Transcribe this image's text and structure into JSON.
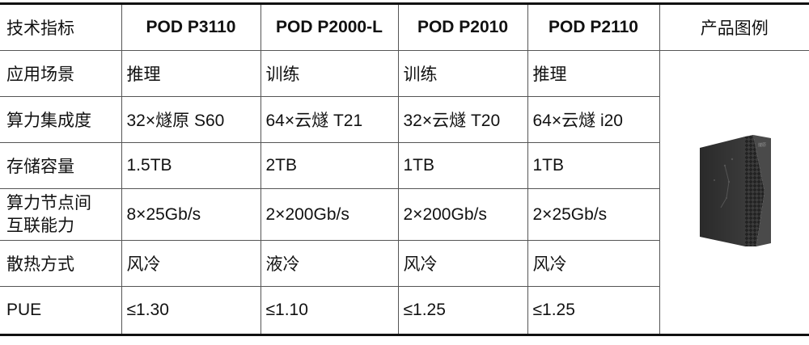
{
  "headers": [
    "技术指标",
    "POD P3110",
    "POD P2000-L",
    "POD P2010",
    "POD P2110",
    "产品图例"
  ],
  "rows": [
    {
      "label": "应用场景",
      "values": [
        "推理",
        "训练",
        "训练",
        "推理"
      ]
    },
    {
      "label": "算力集成度",
      "values": [
        "32×燧原 S60",
        "64×云燧 T21",
        "32×云燧 T20",
        "64×云燧 i20"
      ]
    },
    {
      "label": "存储容量",
      "values": [
        "1.5TB",
        "2TB",
        "1TB",
        "1TB"
      ]
    },
    {
      "label": "算力节点间互联能力",
      "values": [
        "8×25Gb/s",
        "2×200Gb/s",
        "2×200Gb/s",
        "2×25Gb/s"
      ]
    },
    {
      "label": "散热方式",
      "values": [
        "风冷",
        "液冷",
        "风冷",
        "风冷"
      ]
    },
    {
      "label": "PUE",
      "values": [
        "≤1.30",
        "≤1.10",
        "≤1.25",
        "≤1.25"
      ]
    }
  ],
  "product_image": {
    "alt": "POD server cabinet",
    "logo_text": "燧原"
  }
}
